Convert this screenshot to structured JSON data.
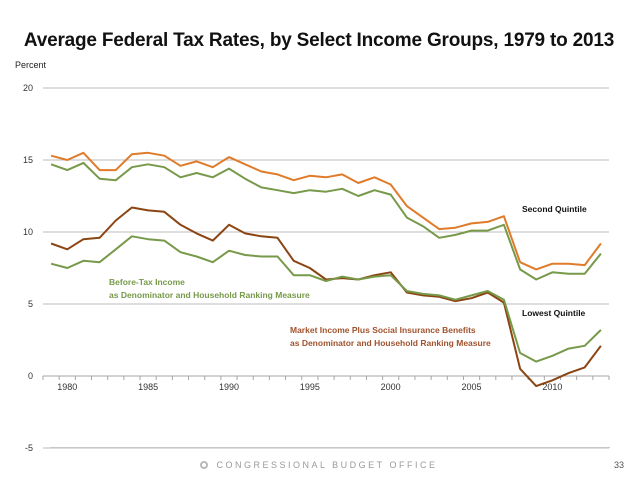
{
  "chart_data": {
    "type": "line",
    "title": "Average Federal Tax Rates, by Select Income Groups, 1979 to 2013",
    "ylabel": "Percent",
    "xlabel": "",
    "ylim": [
      -5,
      20
    ],
    "yticks": [
      20,
      15,
      10,
      5,
      0,
      -5
    ],
    "xlim": [
      1979,
      2013
    ],
    "xtick_labels": [
      1980,
      1985,
      1990,
      1995,
      2000,
      2005,
      2010
    ],
    "grid": true,
    "x": [
      1979,
      1980,
      1981,
      1982,
      1983,
      1984,
      1985,
      1986,
      1987,
      1988,
      1989,
      1990,
      1991,
      1992,
      1993,
      1994,
      1995,
      1996,
      1997,
      1998,
      1999,
      2000,
      2001,
      2002,
      2003,
      2004,
      2005,
      2006,
      2007,
      2008,
      2009,
      2010,
      2011,
      2012,
      2013
    ],
    "series": [
      {
        "name": "Second Quintile - Market Income Plus Social Insurance Benefits",
        "color": "#e07b2a",
        "values": [
          15.3,
          15.0,
          15.5,
          14.3,
          14.3,
          15.4,
          15.5,
          15.3,
          14.6,
          14.9,
          14.5,
          15.2,
          14.7,
          14.2,
          14.0,
          13.6,
          13.9,
          13.8,
          14.0,
          13.4,
          13.8,
          13.3,
          11.8,
          11.0,
          10.2,
          10.3,
          10.6,
          10.7,
          11.1,
          7.9,
          7.4,
          7.8,
          7.8,
          7.7,
          9.2
        ]
      },
      {
        "name": "Second Quintile - Before-Tax Income",
        "color": "#77994a",
        "values": [
          14.7,
          14.3,
          14.8,
          13.7,
          13.6,
          14.5,
          14.7,
          14.5,
          13.8,
          14.1,
          13.8,
          14.4,
          13.7,
          13.1,
          12.9,
          12.7,
          12.9,
          12.8,
          13.0,
          12.5,
          12.9,
          12.6,
          11.0,
          10.4,
          9.6,
          9.8,
          10.1,
          10.1,
          10.5,
          7.4,
          6.7,
          7.2,
          7.1,
          7.1,
          8.5
        ]
      },
      {
        "name": "Lowest Quintile - Market Income Plus Social Insurance Benefits",
        "color": "#8b4513",
        "values": [
          9.2,
          8.8,
          9.5,
          9.6,
          10.8,
          11.7,
          11.5,
          11.4,
          10.5,
          9.9,
          9.4,
          10.5,
          9.9,
          9.7,
          9.6,
          8.0,
          7.5,
          6.7,
          6.8,
          6.7,
          7.0,
          7.2,
          5.8,
          5.6,
          5.5,
          5.2,
          5.4,
          5.8,
          5.1,
          0.5,
          -0.7,
          -0.3,
          0.2,
          0.6,
          2.1
        ]
      },
      {
        "name": "Lowest Quintile - Before-Tax Income",
        "color": "#77994a",
        "values": [
          7.8,
          7.5,
          8.0,
          7.9,
          8.8,
          9.7,
          9.5,
          9.4,
          8.6,
          8.3,
          7.9,
          8.7,
          8.4,
          8.3,
          8.3,
          7.0,
          7.0,
          6.6,
          6.9,
          6.7,
          6.9,
          7.0,
          5.9,
          5.7,
          5.6,
          5.3,
          5.6,
          5.9,
          5.3,
          1.6,
          1.0,
          1.4,
          1.9,
          2.1,
          3.2
        ]
      }
    ],
    "annotations": [
      {
        "text": "Second Quintile",
        "color": "#111111"
      },
      {
        "text": "Lowest Quintile",
        "color": "#111111"
      },
      {
        "text": "Before-Tax Income",
        "color": "#77994a"
      },
      {
        "text": "as Denominator and Household Ranking Measure",
        "color": "#77994a"
      },
      {
        "text": "Market Income Plus Social Insurance Benefits",
        "color": "#a0522d"
      },
      {
        "text": "as Denominator and Household Ranking Measure",
        "color": "#a0522d"
      }
    ]
  },
  "footer": {
    "org": "CONGRESSIONAL BUDGET OFFICE",
    "page": "33"
  }
}
